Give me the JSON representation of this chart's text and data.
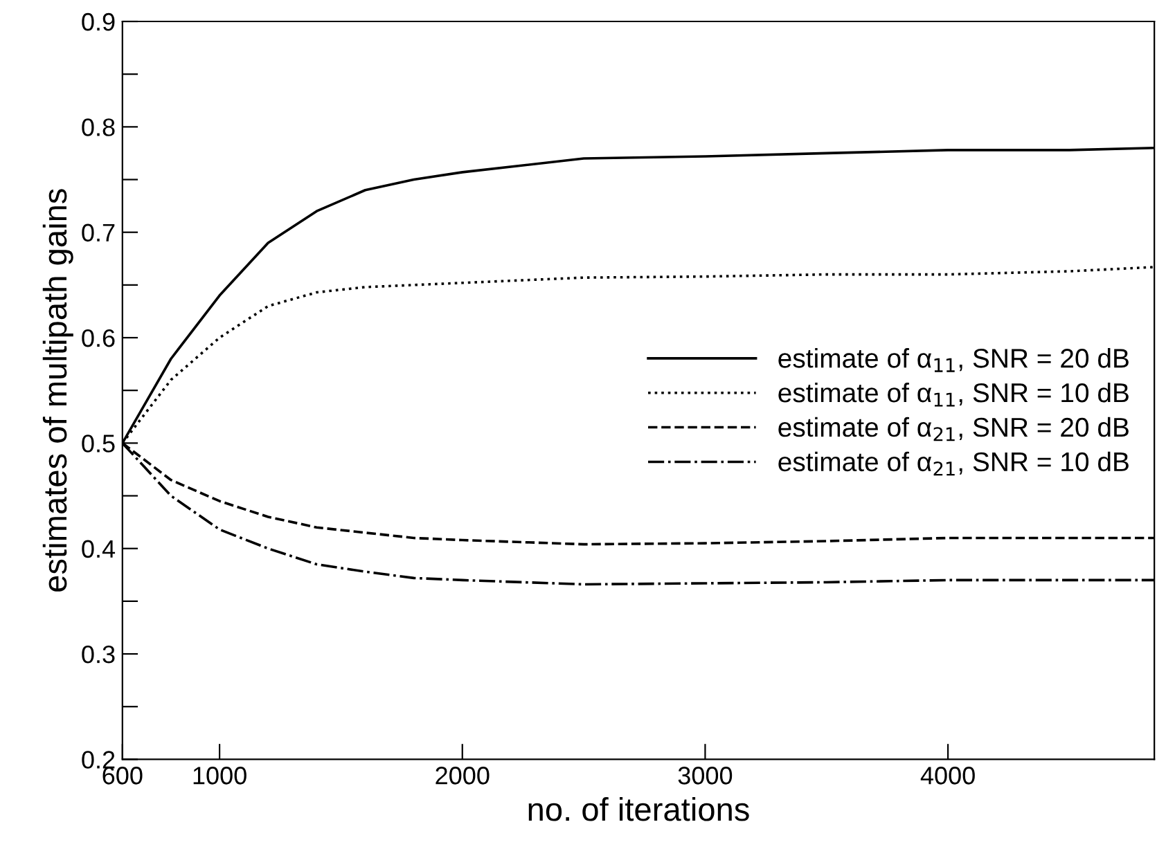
{
  "chart_data": {
    "type": "line",
    "xlabel": "no. of iterations",
    "ylabel": "estimates of multipath gains",
    "xlim": [
      600,
      4850
    ],
    "xticks": [
      600,
      1000,
      2000,
      3000,
      4000
    ],
    "ylim": [
      0.2,
      0.9
    ],
    "yticks": [
      0.2,
      {
        "value": 0.25,
        "label": null
      },
      0.3,
      {
        "value": 0.35,
        "label": null
      },
      0.4,
      {
        "value": 0.45,
        "label": null
      },
      0.5,
      {
        "value": 0.55,
        "label": null
      },
      0.6,
      {
        "value": 0.65,
        "label": null
      },
      0.7,
      {
        "value": 0.75,
        "label": null
      },
      0.8,
      {
        "value": 0.85,
        "label": null
      },
      0.9
    ],
    "x": [
      600,
      800,
      1000,
      1200,
      1400,
      1600,
      1800,
      2000,
      2500,
      3000,
      3500,
      4000,
      4500,
      4850
    ],
    "grid": false,
    "legend": "right",
    "marker": "none",
    "series": [
      {
        "name": "estimate of α$_{11}$, SNR = 20 dB",
        "color": "#000000",
        "line_style": "solid",
        "values": [
          0.5,
          0.58,
          0.64,
          0.69,
          0.72,
          0.74,
          0.75,
          0.757,
          0.77,
          0.772,
          0.775,
          0.778,
          0.778,
          0.78
        ]
      },
      {
        "name": "estimate of α$_{11}$, SNR = 10 dB",
        "color": "#000000",
        "line_style": "dotted",
        "values": [
          0.5,
          0.56,
          0.6,
          0.63,
          0.643,
          0.648,
          0.65,
          0.652,
          0.657,
          0.658,
          0.66,
          0.66,
          0.663,
          0.667
        ]
      },
      {
        "name": "estimate of α$_{21}$, SNR = 20 dB",
        "color": "#000000",
        "line_style": "dashed",
        "values": [
          0.5,
          0.465,
          0.445,
          0.43,
          0.42,
          0.415,
          0.41,
          0.408,
          0.404,
          0.405,
          0.407,
          0.41,
          0.41,
          0.41
        ]
      },
      {
        "name": "estimate of α$_{21}$, SNR = 10 dB",
        "color": "#000000",
        "line_style": "dashdot",
        "values": [
          0.5,
          0.45,
          0.418,
          0.4,
          0.385,
          0.378,
          0.372,
          0.37,
          0.366,
          0.367,
          0.368,
          0.37,
          0.37,
          0.37
        ]
      }
    ]
  }
}
